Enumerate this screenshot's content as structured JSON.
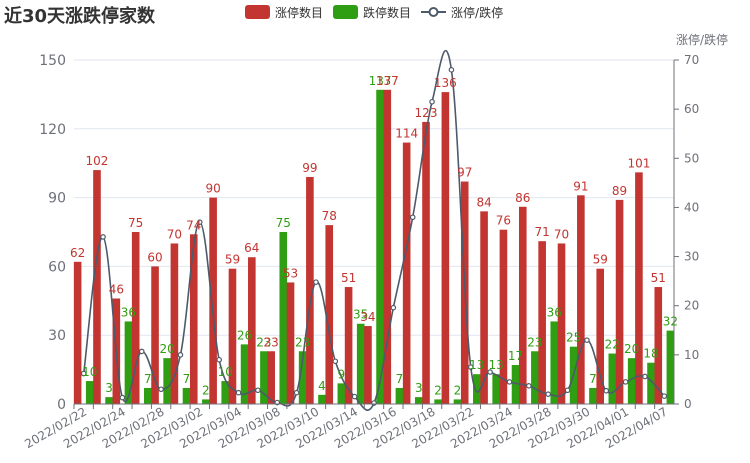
{
  "chart_data": {
    "type": "bar",
    "title": "近30天涨跌停家数",
    "y2label": "涨停/跌停",
    "ylim": [
      0,
      150
    ],
    "y_ticks": [
      0,
      30,
      60,
      90,
      120,
      150
    ],
    "y2lim": [
      0,
      70
    ],
    "y2_ticks": [
      0,
      10,
      20,
      30,
      40,
      50,
      60,
      70
    ],
    "x_tick_labels": [
      "2022/02/22",
      "2022/02/24",
      "2022/02/28",
      "2022/03/02",
      "2022/03/04",
      "2022/03/08",
      "2022/03/10",
      "2022/03/14",
      "2022/03/16",
      "2022/03/18",
      "2022/03/22",
      "2022/03/24",
      "2022/03/28",
      "2022/03/30",
      "2022/04/01",
      "2022/04/07"
    ],
    "series": [
      {
        "name": "涨停数目",
        "type": "bar",
        "color": "#c23531",
        "values": [
          62,
          102,
          46,
          75,
          60,
          70,
          74,
          90,
          59,
          64,
          23,
          53,
          99,
          78,
          51,
          34,
          137,
          114,
          123,
          136,
          97,
          84,
          76,
          86,
          71,
          70,
          91,
          59,
          89,
          101,
          51
        ]
      },
      {
        "name": "跌停数目",
        "type": "bar",
        "color": "#2f9e12",
        "values": [
          10,
          3,
          36,
          7,
          20,
          7,
          2,
          10,
          26,
          23,
          75,
          23,
          4,
          9,
          35,
          137,
          7,
          3,
          2,
          2,
          13,
          13,
          17,
          23,
          36,
          25,
          7,
          22,
          20,
          18,
          32
        ]
      },
      {
        "name": "涨停/跌停",
        "type": "line",
        "axis": "right",
        "color": "#4d5a6a",
        "values": [
          6.2,
          34,
          1.3,
          10.7,
          3,
          10,
          37,
          9,
          2.3,
          2.8,
          0.3,
          2.3,
          24.8,
          8.7,
          1.5,
          0.2,
          19.6,
          38,
          61.5,
          68,
          7.5,
          6.5,
          4.5,
          3.7,
          2,
          2.8,
          13,
          2.7,
          4.5,
          5.6,
          1.6
        ]
      }
    ]
  }
}
